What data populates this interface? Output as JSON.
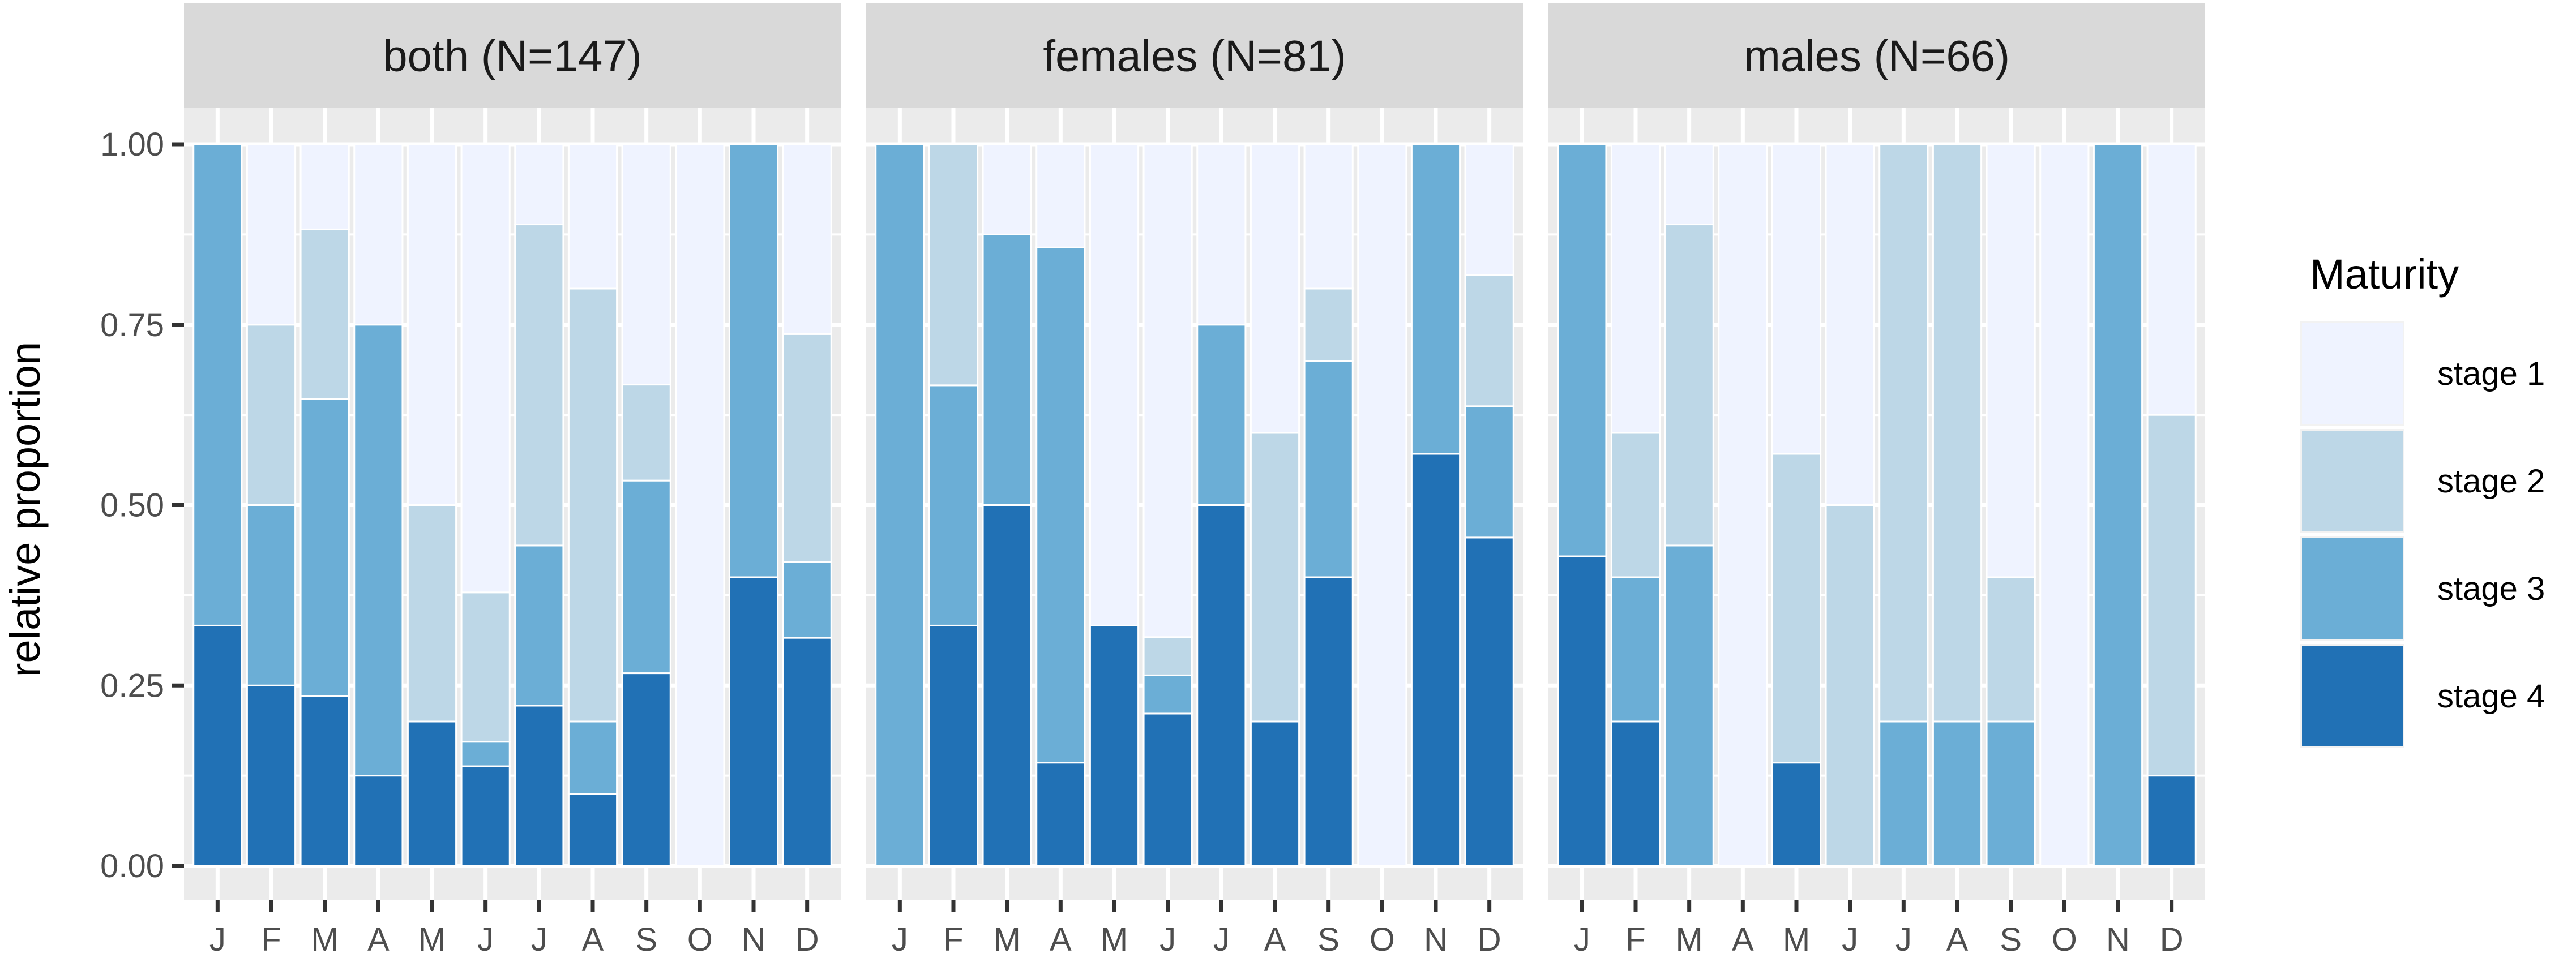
{
  "chart_data": {
    "type": "bar",
    "stacked": true,
    "ylabel": "relative proportion",
    "ylim": [
      0,
      1
    ],
    "yticks": [
      "0.00",
      "0.25",
      "0.50",
      "0.75",
      "1.00"
    ],
    "categories": [
      "J",
      "F",
      "M",
      "A",
      "M",
      "J",
      "J",
      "A",
      "S",
      "O",
      "N",
      "D"
    ],
    "legend": {
      "title": "Maturity",
      "position": "right",
      "entries": [
        "stage 1",
        "stage 2",
        "stage 3",
        "stage 4"
      ]
    },
    "colors": {
      "stage 1": "#eff3ff",
      "stage 2": "#bdd7e7",
      "stage 3": "#6baed6",
      "stage 4": "#2171b5"
    },
    "panels": [
      {
        "strip": "both (N=147)",
        "series": [
          {
            "name": "stage 4",
            "values": [
              0.333,
              0.25,
              0.235,
              0.125,
              0.2,
              0.138,
              0.222,
              0.1,
              0.267,
              0,
              0.4,
              0.316
            ]
          },
          {
            "name": "stage 3",
            "values": [
              0.667,
              0.25,
              0.412,
              0.625,
              0,
              0.034,
              0.222,
              0.1,
              0.267,
              0,
              0.6,
              0.105
            ]
          },
          {
            "name": "stage 2",
            "values": [
              0,
              0.25,
              0.235,
              0,
              0.3,
              0.207,
              0.445,
              0.6,
              0.133,
              0,
              0,
              0.316
            ]
          },
          {
            "name": "stage 1",
            "values": [
              0,
              0.25,
              0.118,
              0.25,
              0.5,
              0.621,
              0.111,
              0.2,
              0.333,
              1,
              0,
              0.263
            ]
          }
        ]
      },
      {
        "strip": "females (N=81)",
        "series": [
          {
            "name": "stage 4",
            "values": [
              0,
              0.333,
              0.5,
              0.143,
              0.333,
              0.211,
              0.5,
              0.2,
              0.4,
              0,
              0.571,
              0.455
            ]
          },
          {
            "name": "stage 3",
            "values": [
              1,
              0.333,
              0.375,
              0.714,
              0,
              0.053,
              0.25,
              0,
              0.3,
              0,
              0.429,
              0.182
            ]
          },
          {
            "name": "stage 2",
            "values": [
              0,
              0.334,
              0,
              0,
              0,
              0.053,
              0,
              0.4,
              0.1,
              0,
              0,
              0.182
            ]
          },
          {
            "name": "stage 1",
            "values": [
              0,
              0,
              0.125,
              0.143,
              0.667,
              0.683,
              0.25,
              0.4,
              0.2,
              1,
              0,
              0.181
            ]
          }
        ]
      },
      {
        "strip": "males (N=66)",
        "series": [
          {
            "name": "stage 4",
            "values": [
              0.429,
              0.2,
              0,
              0,
              0.143,
              0,
              0,
              0,
              0,
              0,
              0,
              0.125
            ]
          },
          {
            "name": "stage 3",
            "values": [
              0.571,
              0.2,
              0.444,
              0,
              0,
              0,
              0.2,
              0.2,
              0.2,
              0,
              1,
              0
            ]
          },
          {
            "name": "stage 2",
            "values": [
              0,
              0.2,
              0.445,
              0,
              0.428,
              0.5,
              0.8,
              0.8,
              0.2,
              0,
              0,
              0.5
            ]
          },
          {
            "name": "stage 1",
            "values": [
              0,
              0.4,
              0.111,
              1,
              0.429,
              0.5,
              0,
              0,
              0.6,
              1,
              0,
              0.375
            ]
          }
        ]
      }
    ]
  }
}
